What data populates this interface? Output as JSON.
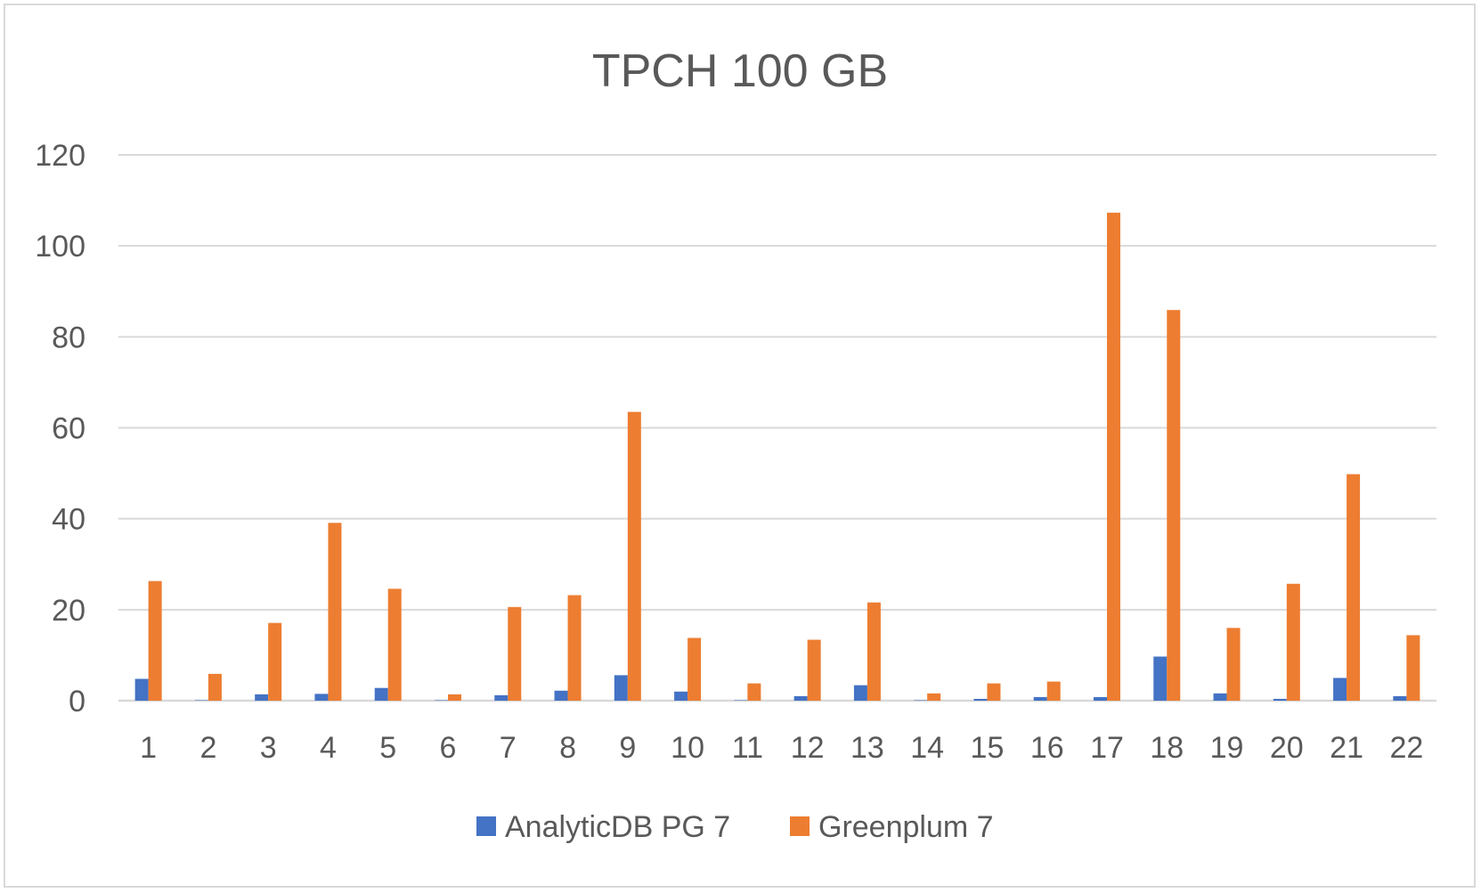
{
  "chart_data": {
    "type": "bar",
    "title": "TPCH 100 GB",
    "xlabel": "",
    "ylabel": "",
    "ylim": [
      0,
      120
    ],
    "yticks": [
      0,
      20,
      40,
      60,
      80,
      100,
      120
    ],
    "categories": [
      "1",
      "2",
      "3",
      "4",
      "5",
      "6",
      "7",
      "8",
      "9",
      "10",
      "11",
      "12",
      "13",
      "14",
      "15",
      "16",
      "17",
      "18",
      "19",
      "20",
      "21",
      "22"
    ],
    "series": [
      {
        "name": "AnalyticDB PG 7",
        "color": "#4472c4",
        "values": [
          4.8,
          0.1,
          1.4,
          1.5,
          2.8,
          0.1,
          1.2,
          2.2,
          5.6,
          2.0,
          0.1,
          1.0,
          3.4,
          0.1,
          0.4,
          0.8,
          0.8,
          9.7,
          1.6,
          0.4,
          5.0,
          1.0
        ]
      },
      {
        "name": "Greenplum 7",
        "color": "#ed7d31",
        "values": [
          26.3,
          5.9,
          17.1,
          39.1,
          24.6,
          1.4,
          20.6,
          23.2,
          63.5,
          13.8,
          3.8,
          13.4,
          21.6,
          1.6,
          3.8,
          4.2,
          107.3,
          85.9,
          16.0,
          25.7,
          49.8,
          14.4
        ]
      }
    ],
    "grid": true,
    "legend_position": "bottom"
  }
}
